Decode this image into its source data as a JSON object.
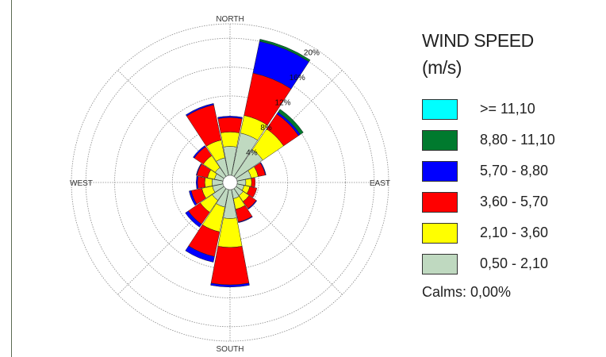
{
  "chart_data": {
    "type": "windrose",
    "title": "WIND SPEED",
    "title_unit": "(m/s)",
    "directions": [
      "N",
      "NNE",
      "NE",
      "ENE",
      "E",
      "ESE",
      "SE",
      "SSE",
      "S",
      "SSW",
      "SW",
      "WSW",
      "W",
      "WNW",
      "NW",
      "NNW"
    ],
    "compass_labels": {
      "north": "NORTH",
      "south": "SOUTH",
      "east": "EAST",
      "west": "WEST"
    },
    "rings": [
      "4%",
      "8%",
      "12%",
      "16%",
      "20%"
    ],
    "rmax": 22,
    "series": [
      {
        "name": "0,50 - 2,10",
        "color": "#bfd9c0",
        "values": [
          4.0,
          6.0,
          4.5,
          2.0,
          1.2,
          1.0,
          1.2,
          1.3,
          4.0,
          2.5,
          2.0,
          1.5,
          1.5,
          1.2,
          1.5,
          2.5
        ]
      },
      {
        "name": "2,10 - 3,60",
        "color": "#ffff00",
        "values": [
          2.0,
          2.5,
          3.5,
          1.0,
          0.8,
          0.8,
          1.0,
          1.5,
          4.0,
          3.5,
          2.0,
          1.5,
          1.0,
          1.0,
          2.0,
          2.5
        ]
      },
      {
        "name": "3,60 - 5,70",
        "color": "#ff0000",
        "values": [
          2.0,
          6.0,
          2.5,
          1.0,
          0.5,
          1.0,
          1.2,
          1.8,
          5.2,
          3.5,
          2.0,
          1.5,
          1.0,
          1.5,
          1.5,
          5.0
        ]
      },
      {
        "name": "5,70 - 8,80",
        "color": "#0000ff",
        "values": [
          0.2,
          4.5,
          0.3,
          0.1,
          0.0,
          0.0,
          0.1,
          0.1,
          0.3,
          0.8,
          0.5,
          0.3,
          0.2,
          0.1,
          0.2,
          0.2
        ]
      },
      {
        "name": "8,80 - 11,10",
        "color": "#007a2e",
        "values": [
          0.0,
          0.3,
          0.5,
          0.0,
          0.0,
          0.0,
          0.0,
          0.0,
          0.0,
          0.0,
          0.0,
          0.0,
          0.0,
          0.0,
          0.0,
          0.0
        ]
      },
      {
        "name": ">= 11,10",
        "color": "#00ffff",
        "values": [
          0,
          0,
          0,
          0,
          0,
          0,
          0,
          0,
          0,
          0,
          0,
          0,
          0,
          0,
          0,
          0
        ]
      }
    ],
    "calms": "Calms: 0,00%"
  }
}
